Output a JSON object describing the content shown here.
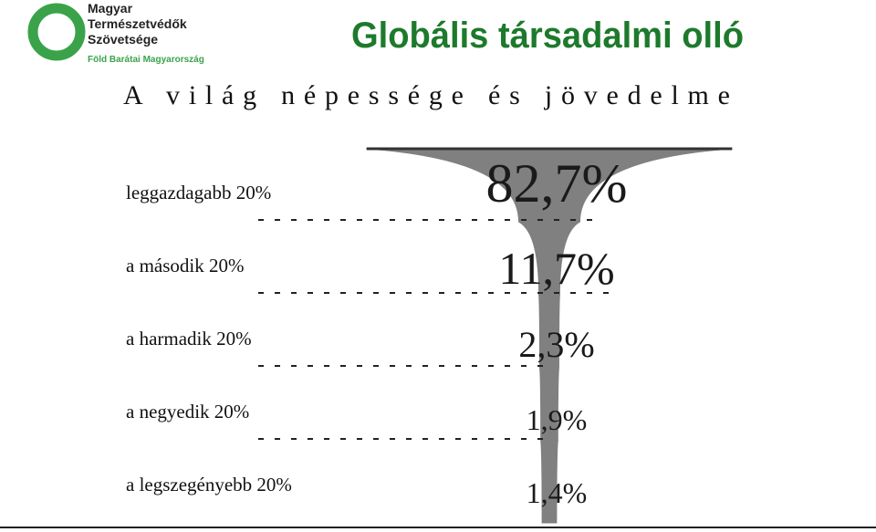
{
  "logo": {
    "lines": [
      "Magyar",
      "Természetvédők",
      "Szövetsége"
    ],
    "tagline": "Föld Barátai Magyarország"
  },
  "chart_data": {
    "type": "champagne",
    "title": "Globális társadalmi olló",
    "subtitle": "A világ népessége és jövedelme",
    "categories": [
      "leggazdagabb 20%",
      "a második 20%",
      "a harmadik 20%",
      "a negyedik  20%",
      "a legszegényebb 20%"
    ],
    "values": [
      82.7,
      11.7,
      2.3,
      1.9,
      1.4
    ],
    "value_labels": [
      "82,7%",
      "11,7%",
      "2,3%",
      "1,9%",
      "1,4%"
    ],
    "color": "#808080"
  }
}
